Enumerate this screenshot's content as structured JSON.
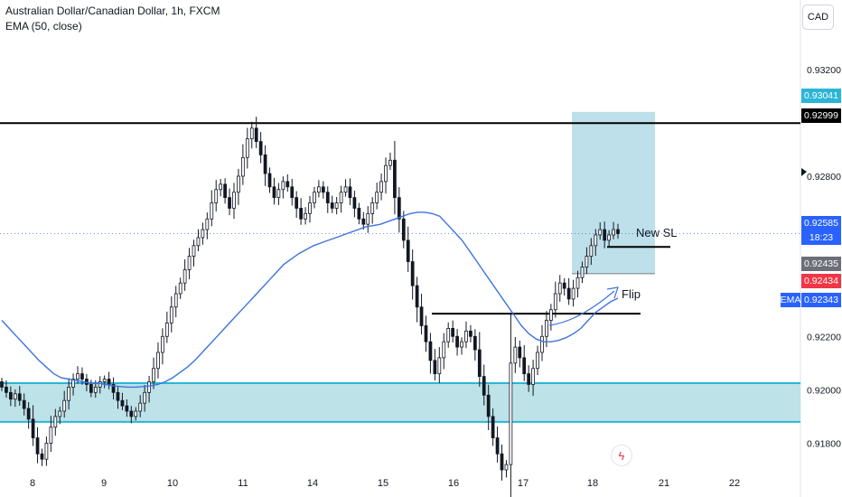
{
  "header": {
    "symbol_line": "Australian Dollar/Canadian Dollar, 1h, FXCM",
    "indicator_line": "EMA (50, close)"
  },
  "currency_button": "CAD",
  "price_tags": {
    "target": "0.93041",
    "resistance": "0.92999",
    "current_price": "0.92585",
    "countdown": "18:23",
    "entry": "0.92435",
    "stop": "0.92434",
    "ema_label": "EMA",
    "ema_value": "0.92343"
  },
  "annotations": {
    "new_sl": "New SL",
    "flip": "Flip"
  },
  "colors": {
    "up": "#131722",
    "down": "#131722",
    "ema": "#3d73e0",
    "zone_fill": "#b2dde3",
    "zone_line": "#2bb6d6",
    "target_box": "#b3dbe6",
    "hline": "#000000",
    "tag_blue": "#2962ff",
    "tag_red": "#f23645",
    "tag_grey": "#6c6f78",
    "tag_cyan": "#2bb6d6"
  },
  "chart_data": {
    "type": "candlestick",
    "symbol": "Australian Dollar/Canadian Dollar",
    "timeframe": "1h",
    "ylim": [
      0.917,
      0.9346
    ],
    "y_ticks": [
      "0.93200",
      "0.92800",
      "0.92200",
      "0.92000",
      "0.91800"
    ],
    "x_ticks": [
      "8",
      "9",
      "10",
      "11",
      "14",
      "15",
      "16",
      "17",
      "18",
      "21",
      "22"
    ],
    "horizontal_lines": [
      {
        "label": "resistance",
        "price": 0.92999
      },
      {
        "label": "flip",
        "price": 0.92285
      },
      {
        "label": "new_sl",
        "price": 0.92535
      }
    ],
    "support_zone": [
      0.9188,
      0.92025
    ],
    "target_box": {
      "top": 0.93041,
      "bottom": 0.92435
    },
    "closes": [
      0.9201,
      0.9199,
      0.91965,
      0.91985,
      0.9196,
      0.9193,
      0.9189,
      0.9182,
      0.9176,
      0.9174,
      0.918,
      0.9186,
      0.919,
      0.9192,
      0.9196,
      0.9201,
      0.9204,
      0.9206,
      0.9204,
      0.9202,
      0.9199,
      0.9201,
      0.9203,
      0.9204,
      0.9202,
      0.9199,
      0.9196,
      0.9194,
      0.9192,
      0.919,
      0.9192,
      0.9195,
      0.9199,
      0.9203,
      0.9208,
      0.9214,
      0.922,
      0.9225,
      0.9231,
      0.9236,
      0.924,
      0.9245,
      0.925,
      0.9254,
      0.9257,
      0.926,
      0.9264,
      0.927,
      0.9275,
      0.9277,
      0.9272,
      0.9268,
      0.9274,
      0.928,
      0.9287,
      0.9294,
      0.9298,
      0.9293,
      0.9288,
      0.9281,
      0.9276,
      0.9272,
      0.9275,
      0.9278,
      0.9276,
      0.9272,
      0.9268,
      0.9264,
      0.9266,
      0.927,
      0.9274,
      0.9276,
      0.9274,
      0.927,
      0.9268,
      0.927,
      0.9274,
      0.9276,
      0.9272,
      0.9268,
      0.9264,
      0.9262,
      0.9266,
      0.927,
      0.9274,
      0.9278,
      0.9284,
      0.9286,
      0.9272,
      0.9264,
      0.9256,
      0.9248,
      0.9239,
      0.9231,
      0.9224,
      0.9218,
      0.9211,
      0.9206,
      0.9212,
      0.9218,
      0.9223,
      0.922,
      0.9216,
      0.9218,
      0.9222,
      0.922,
      0.9215,
      0.9205,
      0.9198,
      0.919,
      0.9182,
      0.9176,
      0.917,
      0.9172,
      0.921,
      0.9216,
      0.9212,
      0.9206,
      0.9202,
      0.9208,
      0.9214,
      0.922,
      0.9226,
      0.923,
      0.9236,
      0.924,
      0.9238,
      0.9234,
      0.9238,
      0.9242,
      0.9246,
      0.925,
      0.9254,
      0.9258,
      0.926,
      0.9256,
      0.9258,
      0.926,
      0.92585
    ],
    "ema": [
      0.9226,
      0.9223,
      0.922,
      0.9217,
      0.9214,
      0.9211,
      0.92085,
      0.9206,
      0.92045,
      0.9204,
      0.92035,
      0.9203,
      0.92025,
      0.92025,
      0.9202,
      0.92015,
      0.92012,
      0.9201,
      0.9201,
      0.92012,
      0.92015,
      0.9202,
      0.9203,
      0.92045,
      0.92065,
      0.92085,
      0.9211,
      0.9214,
      0.9217,
      0.922,
      0.9223,
      0.9226,
      0.9229,
      0.9232,
      0.9235,
      0.9238,
      0.9241,
      0.9244,
      0.9247,
      0.9249,
      0.9251,
      0.92525,
      0.9254,
      0.9255,
      0.9256,
      0.9257,
      0.9258,
      0.9259,
      0.926,
      0.9261,
      0.92615,
      0.9262,
      0.9263,
      0.9264,
      0.9265,
      0.9266,
      0.92665,
      0.92665,
      0.9266,
      0.9265,
      0.9262,
      0.9259,
      0.9256,
      0.9252,
      0.9248,
      0.9244,
      0.924,
      0.9236,
      0.9232,
      0.9228,
      0.9224,
      0.9221,
      0.9219,
      0.9218,
      0.9218,
      0.92185,
      0.92195,
      0.9221,
      0.9223,
      0.9226,
      0.9229,
      0.9231,
      0.9233,
      0.92343
    ]
  }
}
